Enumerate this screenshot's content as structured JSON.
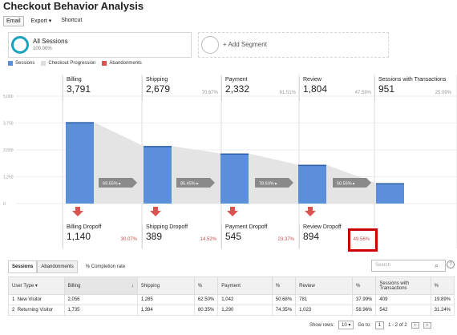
{
  "header": {
    "title": "Checkout Behavior Analysis",
    "toolbar": {
      "email": "Email",
      "export": "Export",
      "shortcut": "Shortcut"
    }
  },
  "segments": {
    "selected": {
      "name": "All Sessions",
      "pct": "100.00%"
    },
    "add": "+ Add Segment"
  },
  "legend": [
    {
      "label": "Sessions",
      "color": "#5b8fd9"
    },
    {
      "label": "Checkout Progression",
      "color": "#dddddd"
    },
    {
      "label": "Abandonments",
      "color": "#d9534f"
    }
  ],
  "chart_data": {
    "type": "bar",
    "categories": [
      "Billing",
      "Shipping",
      "Payment",
      "Review",
      "Sessions with Transactions"
    ],
    "values": [
      3791,
      2679,
      2332,
      1804,
      951
    ],
    "progress_labels": [
      "69.55%",
      "85.45%",
      "78.63%",
      "50.55%"
    ],
    "ylim": [
      0,
      5000
    ],
    "yticks": [
      "5,000",
      "3,750",
      "2,500",
      "1,250",
      "0"
    ]
  },
  "stages": [
    {
      "name": "Billing",
      "value": "3,791",
      "pct": ""
    },
    {
      "name": "Shipping",
      "value": "2,679",
      "pct": "70.67%"
    },
    {
      "name": "Payment",
      "value": "2,332",
      "pct": "61.51%"
    },
    {
      "name": "Review",
      "value": "1,804",
      "pct": "47.59%"
    },
    {
      "name": "Sessions with Transactions",
      "value": "951",
      "pct": "25.09%"
    }
  ],
  "dropoffs": [
    {
      "name": "Billing Dropoff",
      "value": "1,140",
      "pct": "30.07%"
    },
    {
      "name": "Shipping Dropoff",
      "value": "389",
      "pct": "14.52%"
    },
    {
      "name": "Payment Dropoff",
      "value": "545",
      "pct": "23.37%"
    },
    {
      "name": "Review Dropoff",
      "value": "894",
      "pct": "49.56%"
    }
  ],
  "table": {
    "tabs": [
      "Sessions",
      "Abandonments"
    ],
    "extra": "% Completion rate",
    "search_placeholder": "Search",
    "columns": [
      "User Type",
      "Billing",
      "Shipping",
      "%",
      "Payment",
      "%",
      "Review",
      "%",
      "Sessions with Transactions",
      "%"
    ],
    "rows": [
      [
        "1",
        "New Visitor",
        "2,056",
        "1,285",
        "62.50%",
        "1,042",
        "50.68%",
        "781",
        "37.99%",
        "409",
        "19.89%"
      ],
      [
        "2",
        "Returning Visitor",
        "1,735",
        "1,394",
        "80.35%",
        "1,290",
        "74.35%",
        "1,023",
        "58.96%",
        "542",
        "31.24%"
      ]
    ]
  },
  "pager": {
    "show_rows_label": "Show rows:",
    "rows": "10",
    "goto_label": "Go to:",
    "page": "1",
    "range": "1 - 2 of 2"
  }
}
